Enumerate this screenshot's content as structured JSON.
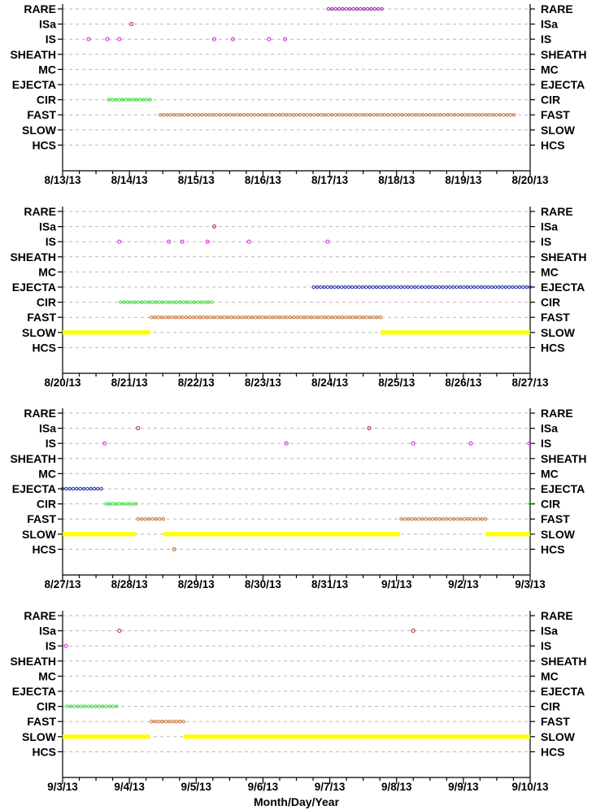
{
  "chart_data": {
    "type": "scatter",
    "xlabel": "Month/Day/Year",
    "categories": [
      "RARE",
      "ISa",
      "IS",
      "SHEATH",
      "MC",
      "EJECTA",
      "CIR",
      "FAST",
      "SLOW",
      "HCS"
    ],
    "colors": {
      "RARE": "#9a1fb0",
      "ISa": "#c0392b",
      "IS": "#d633d6",
      "SHEATH": "#000000",
      "MC": "#000000",
      "EJECTA": "#1f2fb0",
      "CIR": "#33dd33",
      "FAST": "#c8743a",
      "SLOW": "#ffff00",
      "HCS": "#c8743a"
    },
    "panels": [
      {
        "x_ticks": [
          "8/13/13",
          "8/14/13",
          "8/15/13",
          "8/16/13",
          "8/17/13",
          "8/18/13",
          "8/19/13",
          "8/20/13"
        ],
        "segments": [
          {
            "category": "RARE",
            "start": 3.98,
            "end": 4.78
          },
          {
            "category": "CIR",
            "start": 0.69,
            "end": 1.31
          },
          {
            "category": "FAST",
            "start": 1.46,
            "end": 6.76
          }
        ],
        "points": [
          {
            "category": "ISa",
            "x": 1.03
          },
          {
            "category": "IS",
            "x": 0.39
          },
          {
            "category": "IS",
            "x": 0.67
          },
          {
            "category": "IS",
            "x": 0.85
          },
          {
            "category": "IS",
            "x": 2.27
          },
          {
            "category": "IS",
            "x": 2.55
          },
          {
            "category": "IS",
            "x": 3.09
          },
          {
            "category": "IS",
            "x": 3.33
          }
        ]
      },
      {
        "x_ticks": [
          "8/20/13",
          "8/21/13",
          "8/22/13",
          "8/23/13",
          "8/24/13",
          "8/25/13",
          "8/26/13",
          "8/27/13"
        ],
        "segments": [
          {
            "category": "EJECTA",
            "start": 3.76,
            "end": 7.0
          },
          {
            "category": "CIR",
            "start": 0.87,
            "end": 2.23
          },
          {
            "category": "FAST",
            "start": 1.33,
            "end": 4.76
          },
          {
            "category": "SLOW",
            "start": 0.0,
            "end": 1.31
          },
          {
            "category": "SLOW",
            "start": 4.76,
            "end": 7.0
          }
        ],
        "points": [
          {
            "category": "ISa",
            "x": 2.27
          },
          {
            "category": "IS",
            "x": 0.85
          },
          {
            "category": "IS",
            "x": 1.59
          },
          {
            "category": "IS",
            "x": 1.79
          },
          {
            "category": "IS",
            "x": 2.17
          },
          {
            "category": "IS",
            "x": 2.79
          },
          {
            "category": "IS",
            "x": 3.97
          }
        ]
      },
      {
        "x_ticks": [
          "8/27/13",
          "8/28/13",
          "8/29/13",
          "8/30/13",
          "8/31/13",
          "9/1/13",
          "9/2/13",
          "9/3/13"
        ],
        "segments": [
          {
            "category": "EJECTA",
            "start": 0.0,
            "end": 0.58
          },
          {
            "category": "CIR",
            "start": 0.65,
            "end": 1.1
          },
          {
            "category": "CIR",
            "start": 7.0,
            "end": 7.0
          },
          {
            "category": "FAST",
            "start": 1.13,
            "end": 1.51
          },
          {
            "category": "FAST",
            "start": 5.07,
            "end": 6.33
          },
          {
            "category": "SLOW",
            "start": 0.0,
            "end": 1.1
          },
          {
            "category": "SLOW",
            "start": 1.51,
            "end": 5.05
          },
          {
            "category": "SLOW",
            "start": 6.33,
            "end": 7.0
          }
        ],
        "points": [
          {
            "category": "ISa",
            "x": 1.13
          },
          {
            "category": "ISa",
            "x": 4.59
          },
          {
            "category": "IS",
            "x": 0.63
          },
          {
            "category": "IS",
            "x": 3.35
          },
          {
            "category": "IS",
            "x": 5.25
          },
          {
            "category": "IS",
            "x": 6.11
          },
          {
            "category": "IS",
            "x": 6.99
          },
          {
            "category": "HCS",
            "x": 1.67
          }
        ]
      },
      {
        "x_ticks": [
          "9/3/13",
          "9/4/13",
          "9/5/13",
          "9/6/13",
          "9/7/13",
          "9/8/13",
          "9/9/13",
          "9/10/13"
        ],
        "segments": [
          {
            "category": "CIR",
            "start": 0.07,
            "end": 0.81
          },
          {
            "category": "FAST",
            "start": 1.33,
            "end": 1.81
          },
          {
            "category": "SLOW",
            "start": 0.0,
            "end": 1.31
          },
          {
            "category": "SLOW",
            "start": 1.81,
            "end": 7.0
          }
        ],
        "points": [
          {
            "category": "ISa",
            "x": 0.85
          },
          {
            "category": "ISa",
            "x": 5.25
          },
          {
            "category": "IS",
            "x": 0.05
          }
        ]
      }
    ]
  }
}
